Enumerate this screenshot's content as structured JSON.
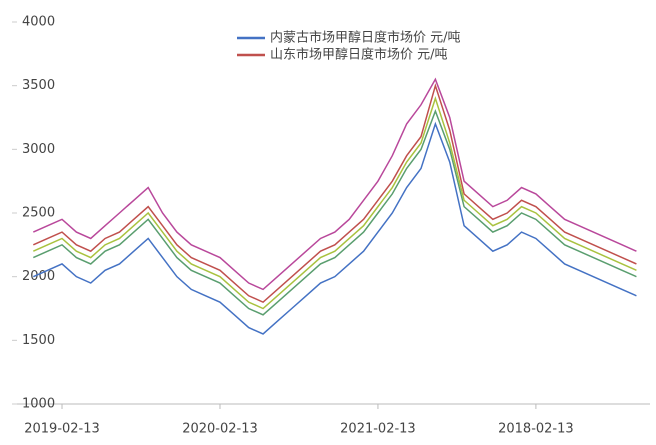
{
  "chart_data": {
    "type": "line",
    "categories": [
      null,
      null,
      "2019-02-13",
      null,
      null,
      null,
      null,
      null,
      null,
      null,
      null,
      null,
      null,
      "2020-02-13",
      null,
      null,
      null,
      null,
      null,
      null,
      null,
      null,
      null,
      null,
      "2021-02-13",
      null,
      null,
      null,
      null,
      null,
      null,
      null,
      null,
      null,
      null,
      "2018-02-13",
      null,
      null,
      null,
      null,
      null,
      null,
      null
    ],
    "series": [
      {
        "name": "内蒙古市场甲醇日度市场价 元/吨",
        "color": "#4472c4",
        "values": [
          2000,
          2050,
          2100,
          2000,
          1950,
          2050,
          2100,
          2200,
          2300,
          2150,
          2000,
          1900,
          1850,
          1800,
          1700,
          1600,
          1550,
          1650,
          1750,
          1850,
          1950,
          2000,
          2100,
          2200,
          2350,
          2500,
          2700,
          2850,
          3200,
          2900,
          2400,
          2300,
          2200,
          2250,
          2350,
          2300,
          2200,
          2100,
          2050,
          2000,
          1950,
          1900,
          1850
        ]
      },
      {
        "name": "山东市场甲醇日度市场价 元/吨",
        "color": "#c0504d",
        "values": [
          2250,
          2300,
          2350,
          2250,
          2200,
          2300,
          2350,
          2450,
          2550,
          2400,
          2250,
          2150,
          2100,
          2050,
          1950,
          1850,
          1800,
          1900,
          2000,
          2100,
          2200,
          2250,
          2350,
          2450,
          2600,
          2750,
          2950,
          3100,
          3500,
          3150,
          2650,
          2550,
          2450,
          2500,
          2600,
          2550,
          2450,
          2350,
          2300,
          2250,
          2200,
          2150,
          2100
        ]
      },
      {
        "color": "#b9489b",
        "values": [
          2350,
          2400,
          2450,
          2350,
          2300,
          2400,
          2500,
          2600,
          2700,
          2500,
          2350,
          2250,
          2200,
          2150,
          2050,
          1950,
          1900,
          2000,
          2100,
          2200,
          2300,
          2350,
          2450,
          2600,
          2750,
          2950,
          3200,
          3350,
          3550,
          3250,
          2750,
          2650,
          2550,
          2600,
          2700,
          2650,
          2550,
          2450,
          2400,
          2350,
          2300,
          2250,
          2200
        ]
      },
      {
        "color": "#5a9e6f",
        "values": [
          2150,
          2200,
          2250,
          2150,
          2100,
          2200,
          2250,
          2350,
          2450,
          2300,
          2150,
          2050,
          2000,
          1950,
          1850,
          1750,
          1700,
          1800,
          1900,
          2000,
          2100,
          2150,
          2250,
          2350,
          2500,
          2650,
          2850,
          3000,
          3300,
          3000,
          2550,
          2450,
          2350,
          2400,
          2500,
          2450,
          2350,
          2250,
          2200,
          2150,
          2100,
          2050,
          2000
        ]
      },
      {
        "color": "#a9c23f",
        "values": [
          2200,
          2250,
          2300,
          2200,
          2150,
          2250,
          2300,
          2400,
          2500,
          2350,
          2200,
          2100,
          2050,
          2000,
          1900,
          1800,
          1750,
          1850,
          1950,
          2050,
          2150,
          2200,
          2300,
          2400,
          2550,
          2700,
          2900,
          3050,
          3400,
          3050,
          2600,
          2500,
          2400,
          2450,
          2550,
          2500,
          2400,
          2300,
          2250,
          2200,
          2150,
          2100,
          2050
        ]
      }
    ],
    "ylim": [
      1000,
      4000
    ],
    "yticks": [
      1000,
      1500,
      2000,
      2500,
      3000,
      3500,
      4000
    ]
  }
}
